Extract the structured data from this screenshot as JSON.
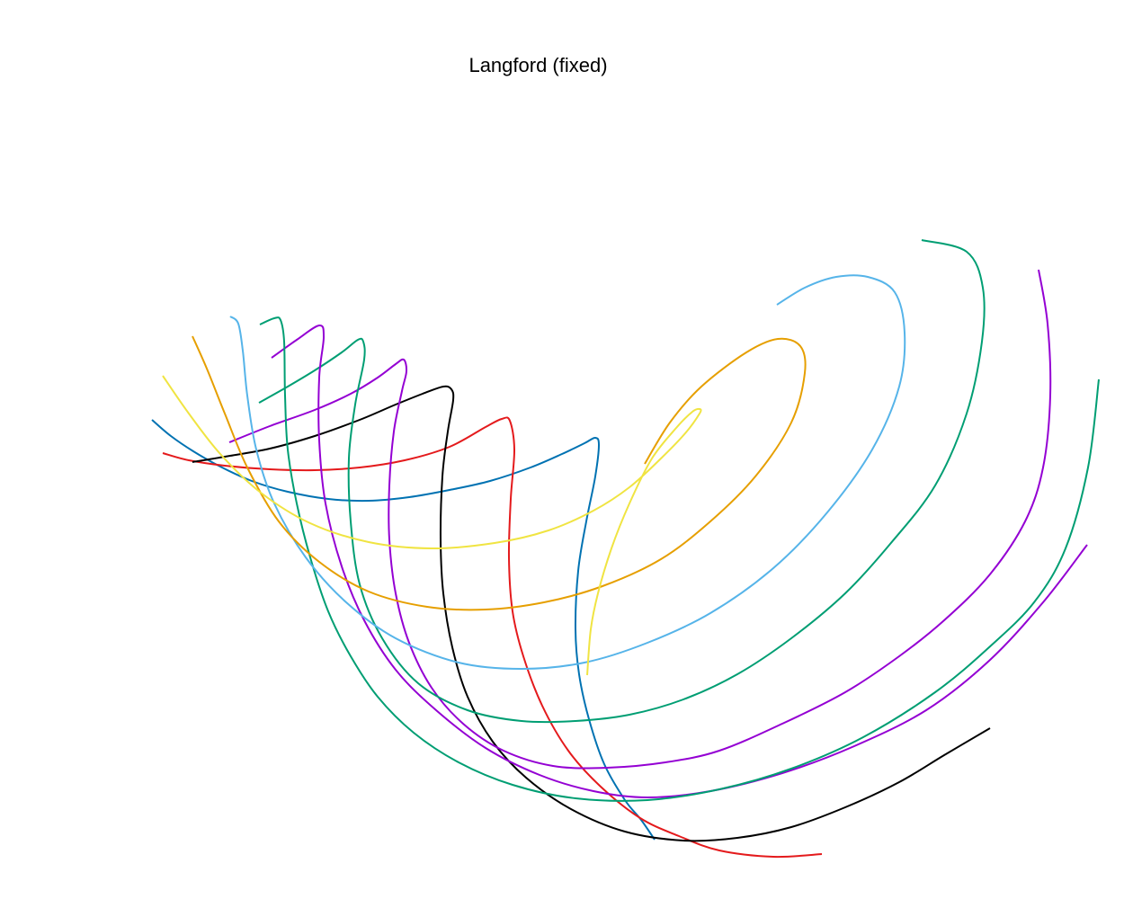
{
  "chart_data": {
    "type": "line",
    "title": "Langford (fixed)",
    "xlabel": "",
    "ylabel": "",
    "grid": false,
    "axes_visible": false,
    "legend": "none",
    "series": [
      {
        "color": "#0072B2",
        "points": [
          [
            169,
            467
          ],
          [
            190,
            485
          ],
          [
            215,
            502
          ],
          [
            245,
            519
          ],
          [
            280,
            535
          ],
          [
            320,
            547
          ],
          [
            365,
            555
          ],
          [
            410,
            557
          ],
          [
            455,
            553
          ],
          [
            500,
            545
          ],
          [
            545,
            535
          ],
          [
            590,
            520
          ],
          [
            625,
            505
          ],
          [
            650,
            493
          ],
          [
            662,
            487
          ],
          [
            666,
            495
          ],
          [
            662,
            530
          ],
          [
            652,
            580
          ],
          [
            643,
            635
          ],
          [
            640,
            700
          ],
          [
            644,
            750
          ],
          [
            655,
            800
          ],
          [
            672,
            850
          ],
          [
            695,
            890
          ],
          [
            713,
            912
          ],
          [
            728,
            934
          ]
        ]
      },
      {
        "color": "#E41A1C",
        "points": [
          [
            181,
            504
          ],
          [
            210,
            512
          ],
          [
            250,
            518
          ],
          [
            300,
            522
          ],
          [
            350,
            523
          ],
          [
            400,
            520
          ],
          [
            450,
            512
          ],
          [
            500,
            497
          ],
          [
            540,
            475
          ],
          [
            558,
            466
          ],
          [
            567,
            468
          ],
          [
            572,
            500
          ],
          [
            568,
            555
          ],
          [
            566,
            620
          ],
          [
            570,
            680
          ],
          [
            582,
            730
          ],
          [
            603,
            785
          ],
          [
            632,
            835
          ],
          [
            668,
            875
          ],
          [
            712,
            910
          ],
          [
            755,
            930
          ],
          [
            800,
            946
          ],
          [
            860,
            953
          ],
          [
            914,
            950
          ]
        ]
      },
      {
        "color": "#000000",
        "points": [
          [
            214,
            514
          ],
          [
            250,
            508
          ],
          [
            300,
            499
          ],
          [
            350,
            485
          ],
          [
            400,
            467
          ],
          [
            440,
            450
          ],
          [
            470,
            438
          ],
          [
            493,
            430
          ],
          [
            502,
            433
          ],
          [
            504,
            445
          ],
          [
            498,
            480
          ],
          [
            492,
            530
          ],
          [
            490,
            600
          ],
          [
            493,
            660
          ],
          [
            503,
            720
          ],
          [
            520,
            775
          ],
          [
            548,
            825
          ],
          [
            585,
            865
          ],
          [
            635,
            900
          ],
          [
            695,
            925
          ],
          [
            760,
            935
          ],
          [
            820,
            932
          ],
          [
            880,
            920
          ],
          [
            940,
            898
          ],
          [
            1000,
            870
          ],
          [
            1050,
            840
          ],
          [
            1101,
            810
          ]
        ]
      },
      {
        "color": "#9400D3",
        "points": [
          [
            255,
            492
          ],
          [
            300,
            474
          ],
          [
            350,
            456
          ],
          [
            390,
            438
          ],
          [
            420,
            420
          ],
          [
            440,
            405
          ],
          [
            449,
            400
          ],
          [
            452,
            413
          ],
          [
            447,
            435
          ],
          [
            438,
            480
          ],
          [
            433,
            540
          ],
          [
            433,
            600
          ],
          [
            440,
            660
          ],
          [
            455,
            715
          ],
          [
            480,
            765
          ],
          [
            515,
            805
          ],
          [
            560,
            835
          ],
          [
            615,
            852
          ],
          [
            675,
            854
          ],
          [
            740,
            848
          ],
          [
            800,
            835
          ],
          [
            870,
            805
          ],
          [
            940,
            770
          ],
          [
            1000,
            730
          ],
          [
            1050,
            690
          ],
          [
            1100,
            640
          ],
          [
            1140,
            580
          ],
          [
            1160,
            520
          ],
          [
            1168,
            440
          ],
          [
            1165,
            360
          ],
          [
            1155,
            300
          ]
        ]
      },
      {
        "color": "#009E73",
        "points": [
          [
            288,
            448
          ],
          [
            320,
            430
          ],
          [
            350,
            412
          ],
          [
            380,
            392
          ],
          [
            398,
            378
          ],
          [
            404,
            380
          ],
          [
            405,
            400
          ],
          [
            395,
            450
          ],
          [
            388,
            510
          ],
          [
            390,
            580
          ],
          [
            400,
            650
          ],
          [
            425,
            710
          ],
          [
            465,
            760
          ],
          [
            520,
            790
          ],
          [
            580,
            802
          ],
          [
            640,
            802
          ],
          [
            700,
            795
          ],
          [
            760,
            778
          ],
          [
            820,
            750
          ],
          [
            880,
            710
          ],
          [
            940,
            660
          ],
          [
            990,
            605
          ],
          [
            1040,
            540
          ],
          [
            1075,
            460
          ],
          [
            1092,
            380
          ],
          [
            1093,
            320
          ],
          [
            1075,
            280
          ],
          [
            1025,
            267
          ]
        ]
      },
      {
        "color": "#9400D3",
        "points": [
          [
            302,
            398
          ],
          [
            330,
            378
          ],
          [
            355,
            362
          ],
          [
            360,
            375
          ],
          [
            355,
            420
          ],
          [
            355,
            490
          ],
          [
            362,
            560
          ],
          [
            380,
            630
          ],
          [
            405,
            690
          ],
          [
            440,
            745
          ],
          [
            485,
            790
          ],
          [
            540,
            832
          ],
          [
            600,
            862
          ],
          [
            660,
            880
          ],
          [
            720,
            887
          ],
          [
            790,
            880
          ],
          [
            870,
            860
          ],
          [
            950,
            830
          ],
          [
            1030,
            790
          ],
          [
            1100,
            735
          ],
          [
            1160,
            670
          ],
          [
            1209,
            606
          ]
        ]
      },
      {
        "color": "#009E73",
        "points": [
          [
            289,
            361
          ],
          [
            305,
            354
          ],
          [
            312,
            356
          ],
          [
            316,
            380
          ],
          [
            317,
            440
          ],
          [
            320,
            500
          ],
          [
            330,
            560
          ],
          [
            345,
            620
          ],
          [
            365,
            680
          ],
          [
            390,
            730
          ],
          [
            420,
            775
          ],
          [
            460,
            815
          ],
          [
            510,
            848
          ],
          [
            570,
            873
          ],
          [
            640,
            888
          ],
          [
            720,
            890
          ],
          [
            800,
            878
          ],
          [
            880,
            855
          ],
          [
            960,
            820
          ],
          [
            1040,
            770
          ],
          [
            1100,
            720
          ],
          [
            1150,
            670
          ],
          [
            1185,
            610
          ],
          [
            1210,
            520
          ],
          [
            1222,
            422
          ]
        ]
      },
      {
        "color": "#56B4E9",
        "points": [
          [
            256,
            352
          ],
          [
            265,
            360
          ],
          [
            270,
            390
          ],
          [
            275,
            440
          ],
          [
            285,
            500
          ],
          [
            305,
            560
          ],
          [
            340,
            620
          ],
          [
            385,
            670
          ],
          [
            440,
            710
          ],
          [
            510,
            737
          ],
          [
            580,
            744
          ],
          [
            650,
            737
          ],
          [
            720,
            715
          ],
          [
            790,
            682
          ],
          [
            860,
            632
          ],
          [
            920,
            570
          ],
          [
            970,
            500
          ],
          [
            1000,
            430
          ],
          [
            1006,
            370
          ],
          [
            995,
            325
          ],
          [
            965,
            308
          ],
          [
            930,
            308
          ],
          [
            895,
            320
          ],
          [
            864,
            339
          ]
        ]
      },
      {
        "color": "#E69F00",
        "points": [
          [
            214,
            374
          ],
          [
            230,
            410
          ],
          [
            250,
            460
          ],
          [
            275,
            520
          ],
          [
            310,
            580
          ],
          [
            355,
            625
          ],
          [
            410,
            658
          ],
          [
            475,
            675
          ],
          [
            540,
            678
          ],
          [
            605,
            670
          ],
          [
            670,
            652
          ],
          [
            735,
            622
          ],
          [
            790,
            580
          ],
          [
            840,
            530
          ],
          [
            880,
            470
          ],
          [
            895,
            415
          ],
          [
            890,
            385
          ],
          [
            865,
            377
          ],
          [
            830,
            392
          ],
          [
            780,
            430
          ],
          [
            745,
            470
          ],
          [
            717,
            516
          ]
        ]
      },
      {
        "color": "#F0E442",
        "points": [
          [
            181,
            418
          ],
          [
            210,
            460
          ],
          [
            245,
            505
          ],
          [
            290,
            548
          ],
          [
            345,
            582
          ],
          [
            410,
            603
          ],
          [
            480,
            610
          ],
          [
            550,
            604
          ],
          [
            610,
            590
          ],
          [
            660,
            568
          ],
          [
            700,
            542
          ],
          [
            735,
            510
          ],
          [
            762,
            482
          ],
          [
            778,
            460
          ],
          [
            778,
            455
          ],
          [
            770,
            458
          ],
          [
            752,
            476
          ],
          [
            725,
            510
          ],
          [
            700,
            560
          ],
          [
            680,
            610
          ],
          [
            665,
            660
          ],
          [
            657,
            700
          ],
          [
            653,
            751
          ]
        ]
      }
    ]
  }
}
